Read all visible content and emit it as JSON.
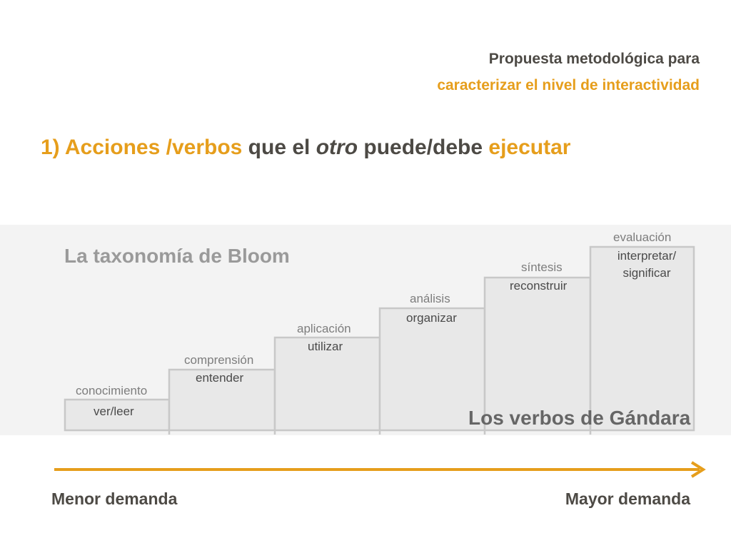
{
  "header": {
    "line1": "Propuesta metodológica para",
    "line2": "caracterizar el nivel de interactividad"
  },
  "title": {
    "part1": "1) Acciones /verbos",
    "part2": " que el ",
    "part3": "otro",
    "part4": " puede/debe ",
    "part5": "ejecutar"
  },
  "figure": {
    "heading": "La taxonomía de Bloom",
    "footer": "Los verbos de Gándara",
    "steps": [
      {
        "label": "conocimiento",
        "verb": "ver/leer"
      },
      {
        "label": "comprensión",
        "verb": "entender"
      },
      {
        "label": "aplicación",
        "verb": "utilizar"
      },
      {
        "label": "análisis",
        "verb": "organizar"
      },
      {
        "label": "síntesis",
        "verb": "reconstruir"
      },
      {
        "label": "evaluación",
        "verb_line1": "interpretar/",
        "verb_line2": "significar"
      }
    ]
  },
  "axis": {
    "left_label": "Menor demanda",
    "right_label": "Mayor demanda",
    "arrow_color": "#e69e1c"
  },
  "colors": {
    "accent": "#e69e1c",
    "text_dark": "#4d4a45"
  }
}
